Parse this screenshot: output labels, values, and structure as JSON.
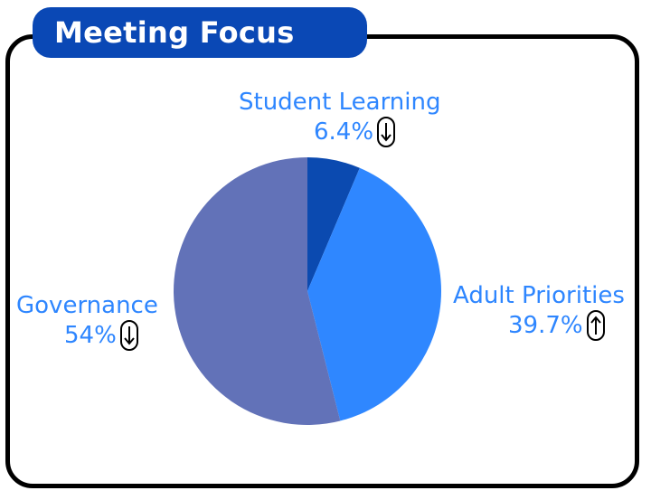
{
  "title": "Meeting Focus",
  "chart_data": {
    "type": "pie",
    "slices": [
      {
        "label": "Student Learning",
        "value_text": "6.4%",
        "value": 6.4,
        "trend": "down",
        "color": "#0b4ab0"
      },
      {
        "label": "Adult Priorities",
        "value_text": "39.7%",
        "value": 39.7,
        "trend": "up",
        "color": "#2f87ff"
      },
      {
        "label": "Governance",
        "value_text": "54%",
        "value": 54,
        "trend": "down",
        "color": "#6272b8"
      }
    ]
  },
  "icons": {
    "down": "down-arrow-icon",
    "up": "up-arrow-icon"
  }
}
